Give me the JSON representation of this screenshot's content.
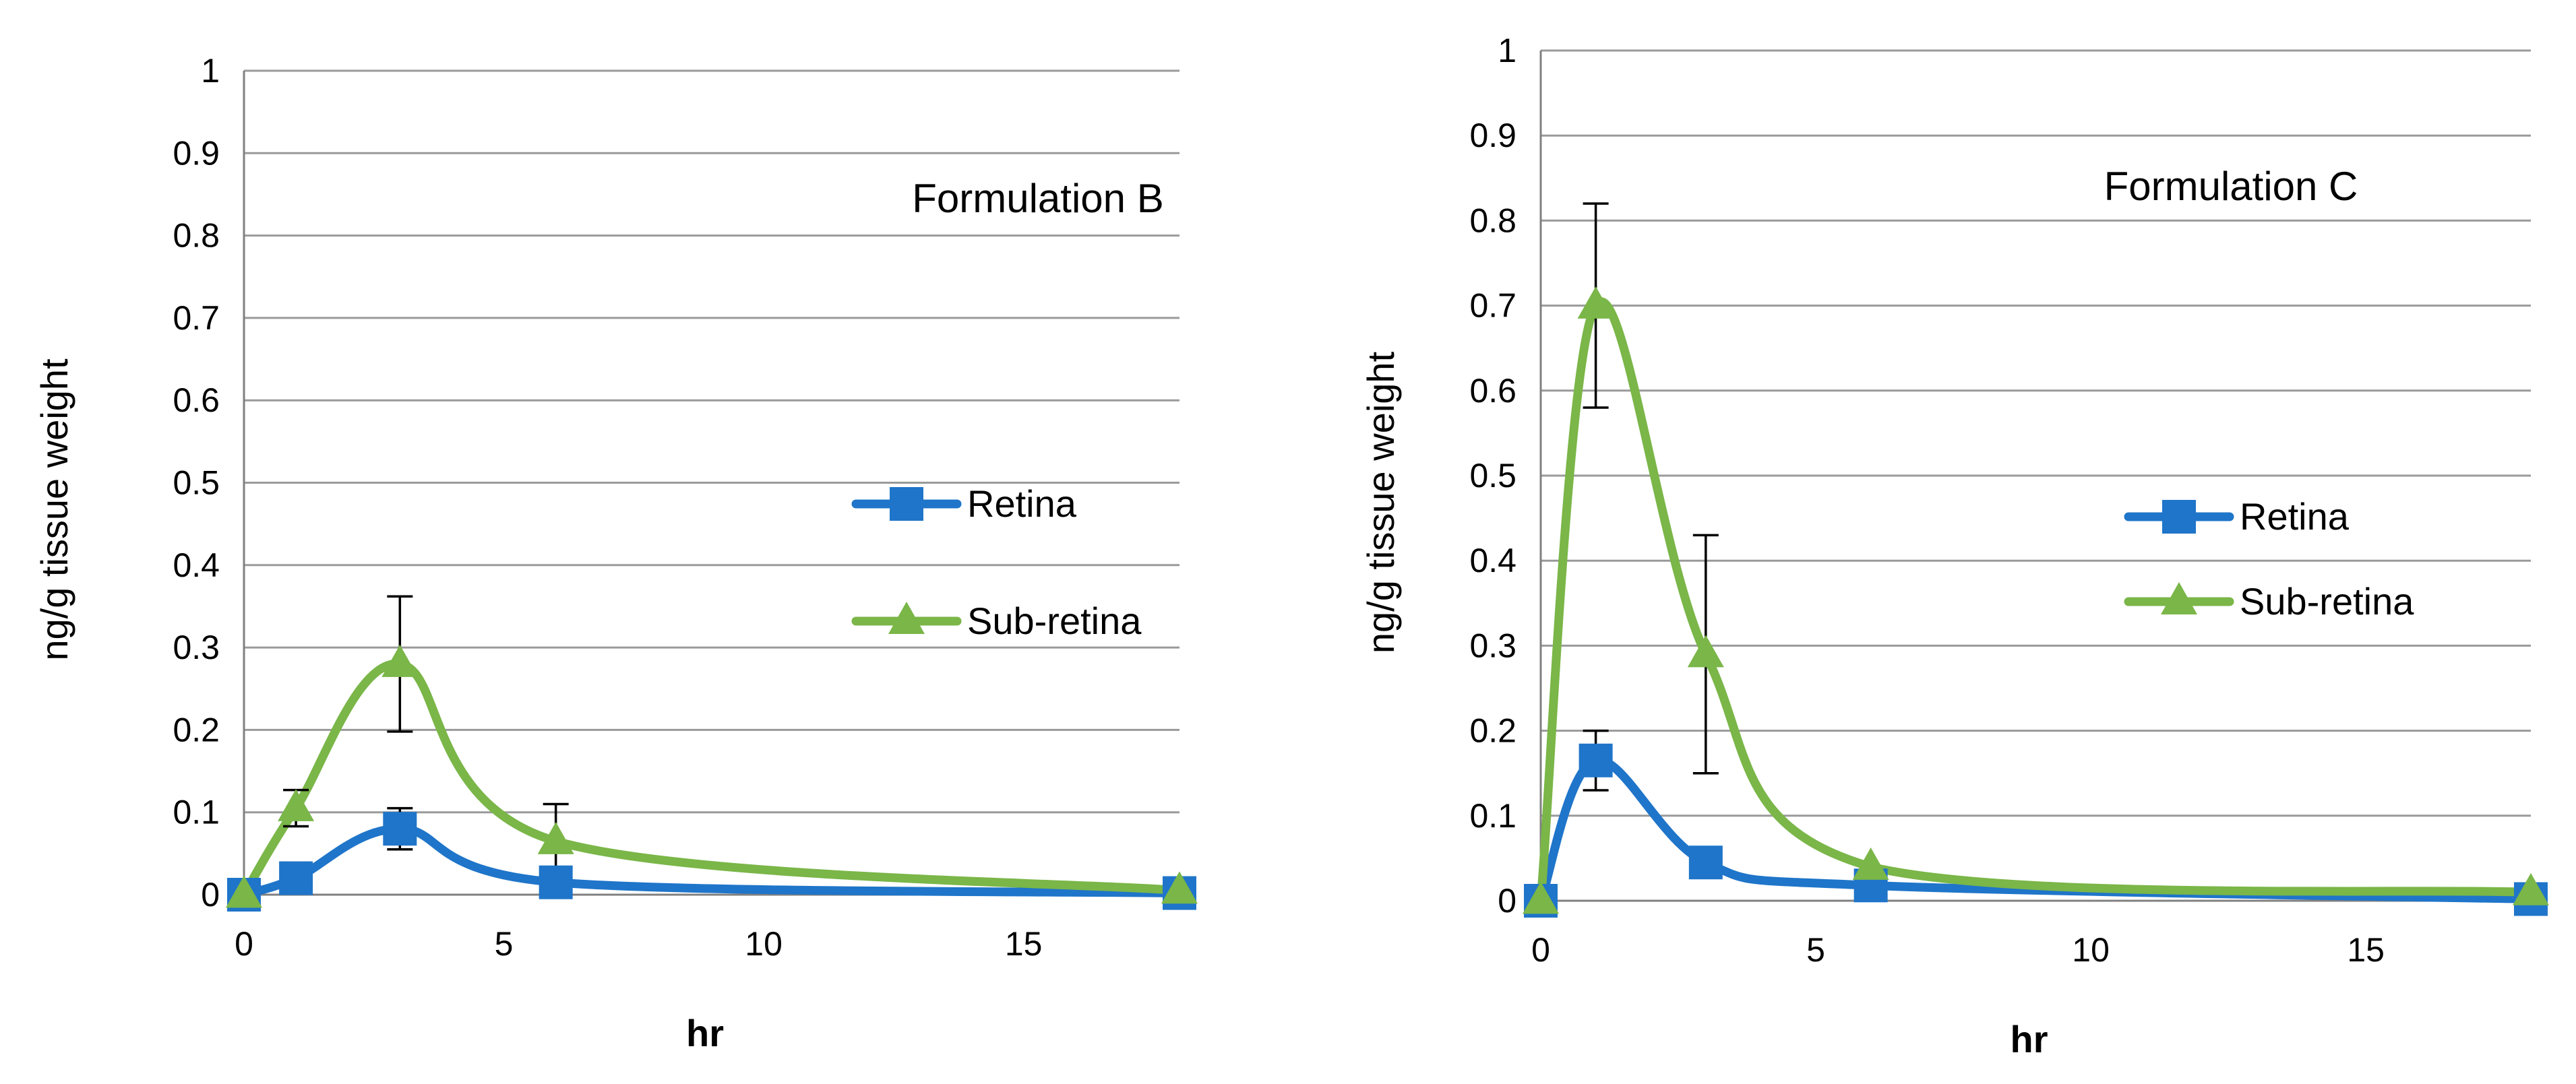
{
  "chart_data": [
    {
      "type": "line",
      "title": "Formulation B",
      "xlabel": "hr",
      "ylabel": "ng/g tissue weight",
      "xlim": [
        0,
        18
      ],
      "ylim": [
        0,
        1
      ],
      "xticks": [
        0,
        5,
        10,
        15
      ],
      "yticks": [
        0,
        0.1,
        0.2,
        0.3,
        0.4,
        0.5,
        0.6,
        0.7,
        0.8,
        0.9,
        1
      ],
      "ytick_labels": [
        "0",
        "0.1",
        "0.2",
        "0.3",
        "0.4",
        "0.5",
        "0.6",
        "0.7",
        "0.8",
        "0.9",
        "1"
      ],
      "xtick_labels": [
        "0",
        "5",
        "10",
        "15"
      ],
      "grid": true,
      "legend_position": "right",
      "series": [
        {
          "name": "Retina",
          "color": "#1f75c9",
          "marker": "square",
          "x": [
            0,
            1,
            3,
            6,
            18
          ],
          "y": [
            0.0,
            0.02,
            0.08,
            0.015,
            0.002
          ],
          "err": [
            null,
            null,
            0.025,
            null,
            null
          ]
        },
        {
          "name": "Sub-retina",
          "color": "#7ab648",
          "marker": "triangle",
          "x": [
            0,
            1,
            3,
            6,
            18
          ],
          "y": [
            0.0,
            0.105,
            0.28,
            0.065,
            0.005
          ],
          "err": [
            null,
            0.022,
            0.082,
            0.045,
            null
          ]
        }
      ]
    },
    {
      "type": "line",
      "title": "Formulation C",
      "xlabel": "hr",
      "ylabel": "ng/g tissue weight",
      "xlim": [
        0,
        18
      ],
      "ylim": [
        0,
        1
      ],
      "xticks": [
        0,
        5,
        10,
        15
      ],
      "yticks": [
        0,
        0.1,
        0.2,
        0.3,
        0.4,
        0.5,
        0.6,
        0.7,
        0.8,
        0.9,
        1
      ],
      "ytick_labels": [
        "0",
        "0.1",
        "0.2",
        "0.3",
        "0.4",
        "0.5",
        "0.6",
        "0.7",
        "0.8",
        "0.9",
        "1"
      ],
      "xtick_labels": [
        "0",
        "5",
        "10",
        "15"
      ],
      "grid": true,
      "legend_position": "right",
      "series": [
        {
          "name": "Retina",
          "color": "#1f75c9",
          "marker": "square",
          "x": [
            0,
            1,
            3,
            6,
            18
          ],
          "y": [
            0.0,
            0.165,
            0.045,
            0.018,
            0.002
          ],
          "err": [
            null,
            0.035,
            null,
            null,
            null
          ]
        },
        {
          "name": "Sub-retina",
          "color": "#7ab648",
          "marker": "triangle",
          "x": [
            0,
            1,
            3,
            6,
            18
          ],
          "y": [
            0.0,
            0.7,
            0.29,
            0.04,
            0.01
          ],
          "err": [
            null,
            0.12,
            0.14,
            null,
            null
          ]
        }
      ]
    }
  ]
}
